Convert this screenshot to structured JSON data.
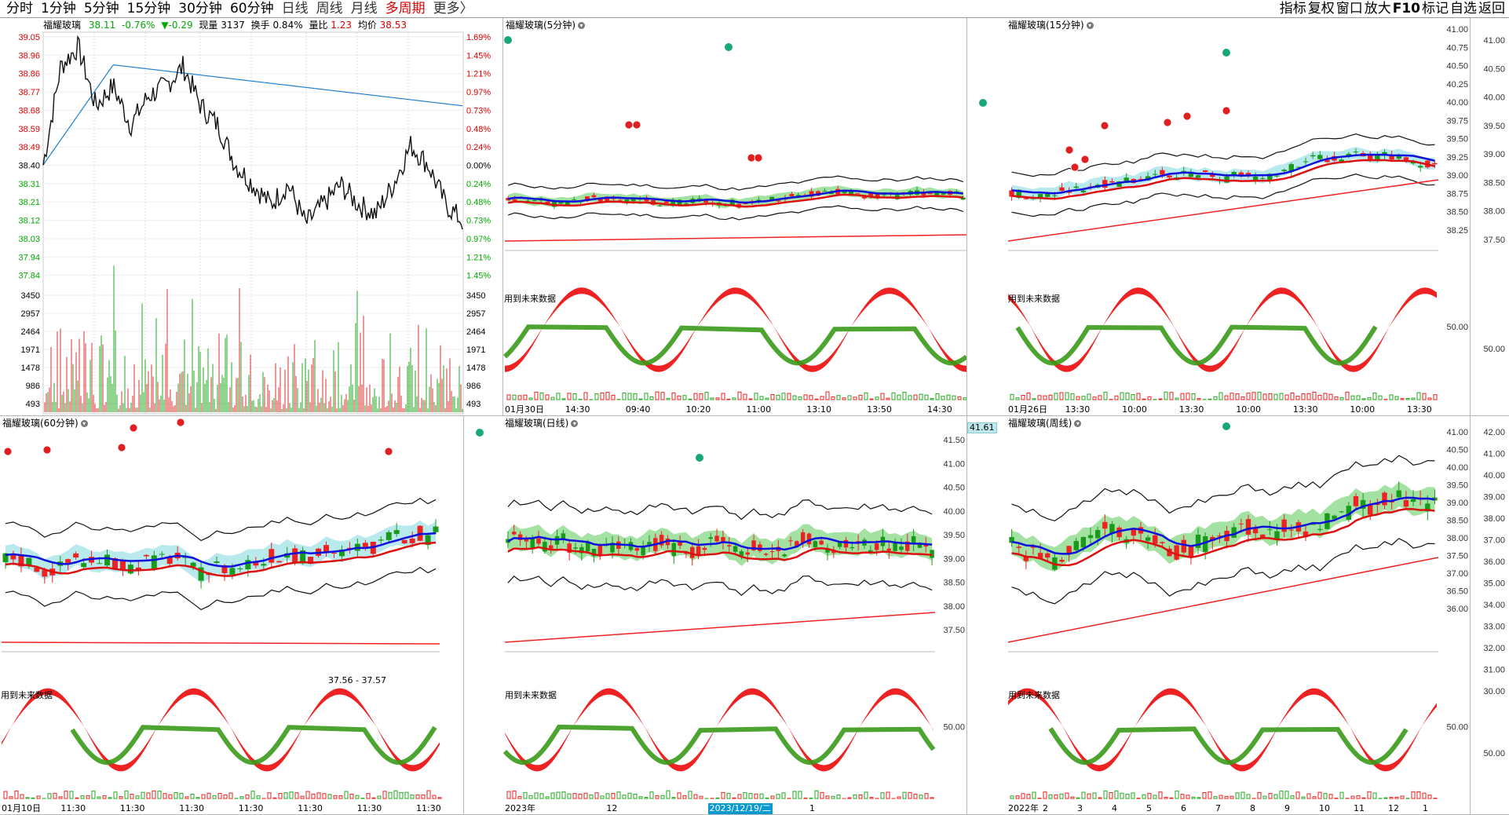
{
  "topbar": {
    "tabs": [
      "分时",
      "1分钟",
      "5分钟",
      "15分钟",
      "30分钟",
      "60分钟",
      "日线",
      "周线",
      "月线",
      "多周期",
      "更多〉"
    ],
    "active_tab": "多周期",
    "right_buttons": [
      "指标",
      "复权",
      "窗口",
      "放大",
      "F10",
      "标记",
      "自选",
      "返回"
    ]
  },
  "intraday": {
    "title": "福耀玻璃",
    "price": "38.11",
    "change_pct": "-0.76%",
    "change": "▼-0.29",
    "volume_label": "现量",
    "volume": "3137",
    "turnover_label": "换手",
    "turnover": "0.84%",
    "ratio_label": "量比",
    "ratio": "1.23",
    "avg_label": "均价",
    "avg": "38.53",
    "left_prices": [
      "39.05",
      "38.96",
      "38.86",
      "38.77",
      "38.68",
      "38.59",
      "38.49",
      "38.40",
      "38.31",
      "38.21",
      "38.12",
      "38.03",
      "37.94",
      "37.84"
    ],
    "right_pcts": [
      "1.69%",
      "1.45%",
      "1.21%",
      "0.97%",
      "0.73%",
      "0.48%",
      "0.24%",
      "0.00%",
      "0.24%",
      "0.48%",
      "0.73%",
      "0.97%",
      "1.21%",
      "1.45%"
    ],
    "vol_ticks": [
      "3450",
      "2957",
      "2464",
      "1971",
      "1478",
      "986",
      "493"
    ]
  },
  "panels": [
    {
      "title": "福耀玻璃(5分钟)",
      "note": "用到未来数据",
      "osc_label": "",
      "axis": [],
      "dates": [
        "01月30日",
        "14:30",
        "09:40",
        "10:20",
        "11:00",
        "13:10",
        "13:50",
        "14:30"
      ]
    },
    {
      "title": "福耀玻璃(15分钟)",
      "note": "用到未来数据",
      "osc_label": "50.00",
      "axis": [
        "41.00",
        "40.75",
        "40.50",
        "40.25",
        "40.00",
        "39.75",
        "39.50",
        "39.25",
        "39.00",
        "38.75",
        "38.50",
        "38.25"
      ],
      "dates": [
        "01月26日",
        "13:30",
        "10:00",
        "13:30",
        "10:00",
        "13:30",
        "10:00",
        "13:30"
      ]
    },
    {
      "title": "",
      "note": "",
      "osc_label": "50.00",
      "axis": [
        "41.00",
        "40.50",
        "40.00",
        "39.50",
        "39.00",
        "38.50",
        "38.00",
        "37.50"
      ],
      "dates": []
    },
    {
      "title": "福耀玻璃(60分钟)",
      "note": "用到未来数据",
      "osc_label": "",
      "axis": [],
      "range_label": "37.56 - 37.57",
      "dates": [
        "01月10日",
        "11:30",
        "11:30",
        "11:30",
        "11:30",
        "11:30",
        "11:30",
        "11:30"
      ]
    },
    {
      "title": "福耀玻璃(日线)",
      "note": "用到未来数据",
      "osc_label": "50.00",
      "axis": [
        "41.50",
        "41.00",
        "40.50",
        "40.00",
        "39.50",
        "39.00",
        "38.50",
        "38.00",
        "37.50"
      ],
      "dates": [
        "2023年",
        "12",
        "2023/12/19/二",
        "1"
      ]
    },
    {
      "title": "福耀玻璃(周线)",
      "note": "用到未来数据",
      "osc_label": "50.00",
      "price_box": "41.61",
      "axis": [
        "41.00",
        "40.50",
        "40.00",
        "39.50",
        "39.00",
        "38.50",
        "38.00",
        "37.50",
        "37.00",
        "36.50",
        "36.00"
      ],
      "dates": [
        "2022年",
        "2",
        "3",
        "4",
        "5",
        "6",
        "7",
        "8",
        "9",
        "10",
        "11",
        "12",
        "1"
      ]
    },
    {
      "title": "",
      "note": "",
      "osc_label": "50.00",
      "axis": [
        "42.00",
        "41.00",
        "40.00",
        "39.00",
        "38.00",
        "37.00",
        "36.00",
        "35.00",
        "34.00",
        "33.00",
        "32.00",
        "31.00",
        "30.00"
      ],
      "dates": []
    }
  ]
}
